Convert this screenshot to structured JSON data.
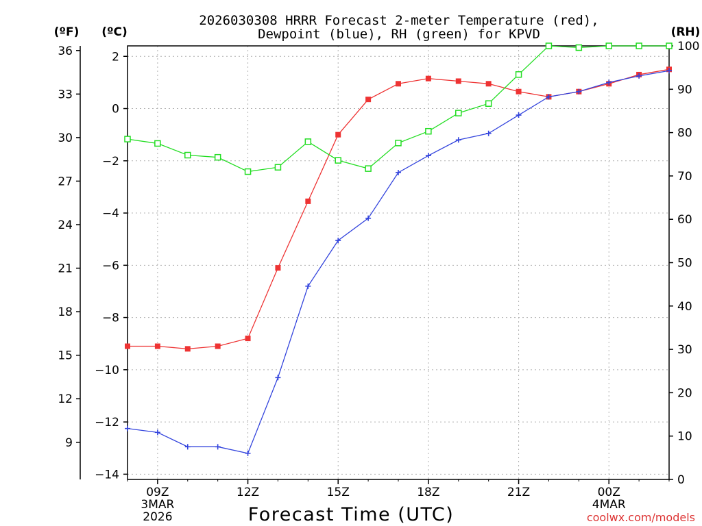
{
  "chart_data": {
    "type": "line",
    "title_line1": "2026030308 HRRR Forecast 2-meter Temperature (red),",
    "title_line2": "Dewpoint (blue), RH (green) for KPVD",
    "xlabel": "Forecast Time (UTC)",
    "left_unit_f": "(ºF)",
    "left_unit_c": "(ºC)",
    "right_unit": "(RH)",
    "watermark": "coolwx.com/models",
    "x_hours": [
      0,
      1,
      2,
      3,
      4,
      5,
      6,
      7,
      8,
      9,
      10,
      11,
      12,
      13,
      14,
      15,
      16,
      17,
      18
    ],
    "ylim_c": [
      -14.2,
      2.4
    ],
    "ylim_rh": [
      0,
      100
    ],
    "x_ticks": [
      {
        "hour": 1,
        "label": "09Z",
        "sub1": "3MAR",
        "sub2": "2026"
      },
      {
        "hour": 4,
        "label": "12Z",
        "sub1": "",
        "sub2": ""
      },
      {
        "hour": 7,
        "label": "15Z",
        "sub1": "",
        "sub2": ""
      },
      {
        "hour": 10,
        "label": "18Z",
        "sub1": "",
        "sub2": ""
      },
      {
        "hour": 13,
        "label": "21Z",
        "sub1": "",
        "sub2": ""
      },
      {
        "hour": 16,
        "label": "00Z",
        "sub1": "4MAR",
        "sub2": ""
      }
    ],
    "y_ticks_c": [
      {
        "value": 2,
        "label": "2"
      },
      {
        "value": 0,
        "label": "0"
      },
      {
        "value": -2,
        "label": "−2"
      },
      {
        "value": -4,
        "label": "−4"
      },
      {
        "value": -6,
        "label": "−6"
      },
      {
        "value": -8,
        "label": "−8"
      },
      {
        "value": -10,
        "label": "−10"
      },
      {
        "value": -12,
        "label": "−12"
      },
      {
        "value": -14,
        "label": "−14"
      }
    ],
    "y_ticks_f": [
      "36",
      "33",
      "30",
      "27",
      "24",
      "21",
      "18",
      "15",
      "12",
      "9"
    ],
    "y_ticks_rh": [
      "0",
      "10",
      "20",
      "30",
      "40",
      "50",
      "60",
      "70",
      "80",
      "90",
      "100"
    ],
    "series": [
      {
        "name": "2-meter Temperature",
        "color": "#ee3333",
        "marker": "filled-square",
        "unit": "C",
        "values": [
          -9.1,
          -9.1,
          -9.2,
          -9.1,
          -8.8,
          -6.1,
          -3.55,
          -1.0,
          0.35,
          0.95,
          1.15,
          1.05,
          0.95,
          0.65,
          0.45,
          0.65,
          0.95,
          1.3,
          1.5
        ]
      },
      {
        "name": "Dewpoint",
        "color": "#3344dd",
        "marker": "plus",
        "unit": "C",
        "values": [
          -12.25,
          -12.4,
          -12.95,
          -12.95,
          -13.2,
          -10.3,
          -6.8,
          -5.05,
          -4.2,
          -2.45,
          -1.8,
          -1.2,
          -0.95,
          -0.25,
          0.45,
          0.65,
          1.0,
          1.25,
          1.45
        ]
      },
      {
        "name": "RH",
        "color": "#22dd22",
        "marker": "open-square",
        "unit": "RH",
        "values": [
          78.5,
          77.5,
          74.8,
          74.3,
          71.0,
          72.0,
          77.9,
          73.6,
          71.7,
          77.6,
          80.3,
          84.5,
          86.7,
          93.4,
          100,
          99.6,
          100,
          100,
          100
        ]
      }
    ]
  }
}
